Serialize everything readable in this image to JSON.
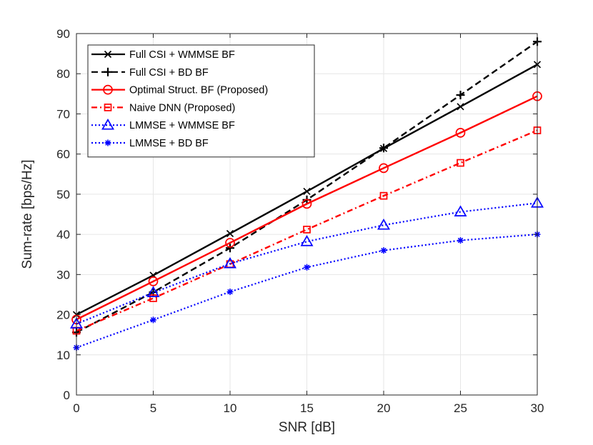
{
  "chart_data": {
    "type": "line",
    "title": "",
    "xlabel": "SNR [dB]",
    "ylabel": "Sum-rate [bps/Hz]",
    "xlim": [
      0,
      30
    ],
    "ylim": [
      0,
      90
    ],
    "xticks": [
      0,
      5,
      10,
      15,
      20,
      25,
      30
    ],
    "yticks": [
      0,
      10,
      20,
      30,
      40,
      50,
      60,
      70,
      80,
      90
    ],
    "grid": true,
    "legend_position": "top-left",
    "x": [
      0,
      5,
      10,
      15,
      20,
      25,
      30
    ],
    "series": [
      {
        "name": "Full CSI + WMMSE BF",
        "values": [
          20.0,
          29.8,
          40.2,
          50.7,
          61.4,
          71.8,
          82.3
        ],
        "color": "#000000",
        "dash": "solid",
        "marker": "x"
      },
      {
        "name": "Full CSI + BD BF",
        "values": [
          15.6,
          25.6,
          36.6,
          48.6,
          61.5,
          74.7,
          88.0
        ],
        "color": "#000000",
        "dash": "dashed",
        "marker": "plus"
      },
      {
        "name": "Optimal Struct. BF (Proposed)",
        "values": [
          18.8,
          28.3,
          37.9,
          47.6,
          56.5,
          65.3,
          74.4
        ],
        "color": "#ff0000",
        "dash": "solid",
        "marker": "circle"
      },
      {
        "name": "Naive DNN (Proposed)",
        "values": [
          16.0,
          24.1,
          32.6,
          41.2,
          49.6,
          57.8,
          65.9
        ],
        "color": "#ff0000",
        "dash": "dashdot",
        "marker": "square"
      },
      {
        "name": "LMMSE + WMMSE BF",
        "values": [
          17.7,
          25.5,
          32.7,
          38.2,
          42.3,
          45.6,
          47.8
        ],
        "color": "#0000ff",
        "dash": "dotted",
        "marker": "triangle"
      },
      {
        "name": "LMMSE + BD BF",
        "values": [
          11.8,
          18.7,
          25.7,
          31.8,
          36.0,
          38.5,
          40.0
        ],
        "color": "#0000ff",
        "dash": "dotted",
        "marker": "asterisk"
      }
    ]
  }
}
